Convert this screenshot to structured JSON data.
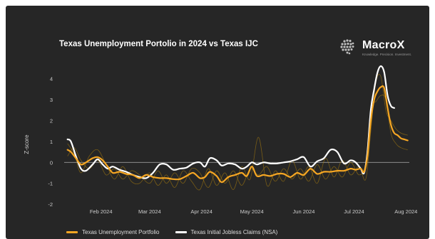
{
  "chart_data": {
    "type": "line",
    "title": "Texas Unemployment Portolio in 2024 vs Texas IJC",
    "ylabel": "Z-score",
    "xlabel": "",
    "ylim": [
      -2.2,
      4.6
    ],
    "yticks": [
      -2,
      -1,
      0,
      1,
      2,
      3,
      4
    ],
    "x_tick_labels": [
      "Feb 2024",
      "Mar 2024",
      "Apr 2024",
      "May 2024",
      "Jun 2024",
      "Jul 2024",
      "Aug 2024"
    ],
    "x_tick_dates": [
      "2024-02-01",
      "2024-03-01",
      "2024-04-01",
      "2024-05-01",
      "2024-06-01",
      "2024-07-01",
      "2024-08-01"
    ],
    "xlim": [
      "2024-01-10",
      "2024-08-03"
    ],
    "grid": false,
    "legend_position": "bottom",
    "zero_line": true,
    "series": [
      {
        "name": "Texas Unemployment Portfolio",
        "color": "#f5a623",
        "x": [
          "2024-01-12",
          "2024-01-14",
          "2024-01-17",
          "2024-01-20",
          "2024-01-23",
          "2024-01-27",
          "2024-01-30",
          "2024-02-02",
          "2024-02-05",
          "2024-02-08",
          "2024-02-12",
          "2024-02-16",
          "2024-02-20",
          "2024-02-24",
          "2024-02-28",
          "2024-03-03",
          "2024-03-07",
          "2024-03-11",
          "2024-03-15",
          "2024-03-19",
          "2024-03-23",
          "2024-03-27",
          "2024-03-31",
          "2024-04-03",
          "2024-04-06",
          "2024-04-10",
          "2024-04-13",
          "2024-04-17",
          "2024-04-21",
          "2024-04-25",
          "2024-04-28",
          "2024-05-01",
          "2024-05-04",
          "2024-05-08",
          "2024-05-12",
          "2024-05-16",
          "2024-05-20",
          "2024-05-24",
          "2024-05-28",
          "2024-06-01",
          "2024-06-05",
          "2024-06-09",
          "2024-06-13",
          "2024-06-17",
          "2024-06-21",
          "2024-06-25",
          "2024-06-29",
          "2024-07-02",
          "2024-07-05",
          "2024-07-07",
          "2024-07-09",
          "2024-07-11",
          "2024-07-13",
          "2024-07-15",
          "2024-07-17",
          "2024-07-19",
          "2024-07-21",
          "2024-07-23",
          "2024-07-25",
          "2024-07-27",
          "2024-07-29",
          "2024-07-31",
          "2024-08-02"
        ],
        "values": [
          0.6,
          0.5,
          0.2,
          -0.1,
          0.0,
          0.2,
          0.25,
          0.1,
          -0.2,
          -0.5,
          -0.45,
          -0.55,
          -0.6,
          -0.75,
          -0.6,
          -0.7,
          -0.75,
          -0.75,
          -0.8,
          -0.8,
          -0.65,
          -0.5,
          -0.75,
          -0.7,
          -0.45,
          -0.65,
          -0.95,
          -0.7,
          -0.6,
          -0.5,
          -0.65,
          -0.2,
          -0.65,
          -0.6,
          -0.65,
          -0.55,
          -0.55,
          -0.7,
          -0.5,
          -0.6,
          -0.3,
          -0.55,
          -0.45,
          -0.45,
          -0.4,
          -0.4,
          -0.3,
          -0.35,
          -0.3,
          -0.45,
          0.3,
          2.0,
          3.0,
          3.4,
          3.6,
          3.55,
          2.6,
          1.8,
          1.4,
          1.3,
          1.15,
          1.1,
          1.05
        ]
      },
      {
        "name": "Texas Initial Jobless Claims (NSA)",
        "color": "#ffffff",
        "x": [
          "2024-01-12",
          "2024-01-14",
          "2024-01-17",
          "2024-01-20",
          "2024-01-23",
          "2024-01-27",
          "2024-01-30",
          "2024-02-02",
          "2024-02-05",
          "2024-02-08",
          "2024-02-12",
          "2024-02-16",
          "2024-02-20",
          "2024-02-24",
          "2024-02-28",
          "2024-03-03",
          "2024-03-07",
          "2024-03-11",
          "2024-03-15",
          "2024-03-19",
          "2024-03-23",
          "2024-03-27",
          "2024-03-31",
          "2024-04-03",
          "2024-04-06",
          "2024-04-10",
          "2024-04-13",
          "2024-04-17",
          "2024-04-21",
          "2024-04-25",
          "2024-04-28",
          "2024-05-01",
          "2024-05-04",
          "2024-05-08",
          "2024-05-12",
          "2024-05-16",
          "2024-05-20",
          "2024-05-24",
          "2024-05-28",
          "2024-06-01",
          "2024-06-05",
          "2024-06-09",
          "2024-06-13",
          "2024-06-17",
          "2024-06-21",
          "2024-06-25",
          "2024-06-29",
          "2024-07-02",
          "2024-07-05",
          "2024-07-07",
          "2024-07-09",
          "2024-07-11",
          "2024-07-13",
          "2024-07-15",
          "2024-07-17",
          "2024-07-19",
          "2024-07-21",
          "2024-07-23",
          "2024-07-25"
        ],
        "values": [
          1.1,
          1.0,
          0.3,
          -0.3,
          -0.4,
          -0.1,
          0.15,
          -0.1,
          -0.3,
          -0.2,
          -0.35,
          -0.45,
          -0.6,
          -0.7,
          -0.75,
          -0.5,
          -0.1,
          -0.1,
          -0.35,
          -0.3,
          -0.25,
          -0.05,
          0.0,
          -0.2,
          0.2,
          0.1,
          -0.15,
          -0.05,
          -0.1,
          -0.3,
          -0.2,
          0.0,
          -0.1,
          0.0,
          -0.05,
          -0.05,
          0.0,
          0.05,
          0.15,
          0.25,
          -0.2,
          0.05,
          0.2,
          0.6,
          0.5,
          -0.05,
          0.1,
          0.0,
          -0.3,
          -0.5,
          0.5,
          2.5,
          3.5,
          4.3,
          4.6,
          4.3,
          3.2,
          2.7,
          2.6
        ]
      }
    ],
    "faint_bands": [
      {
        "color": "#b8860b",
        "x": [
          "2024-01-12",
          "2024-01-16",
          "2024-01-20",
          "2024-01-25",
          "2024-01-30",
          "2024-02-04",
          "2024-02-09",
          "2024-02-14",
          "2024-02-19",
          "2024-02-24",
          "2024-03-01",
          "2024-03-06",
          "2024-03-11",
          "2024-03-16",
          "2024-03-21",
          "2024-03-26",
          "2024-03-31",
          "2024-04-05",
          "2024-04-10",
          "2024-04-15",
          "2024-04-20",
          "2024-04-25",
          "2024-04-30",
          "2024-05-05",
          "2024-05-10",
          "2024-05-15",
          "2024-05-20",
          "2024-05-25",
          "2024-05-30",
          "2024-06-04",
          "2024-06-09",
          "2024-06-14",
          "2024-06-19",
          "2024-06-24",
          "2024-06-29",
          "2024-07-04",
          "2024-07-08",
          "2024-07-11",
          "2024-07-14",
          "2024-07-17",
          "2024-07-20",
          "2024-07-23",
          "2024-07-26",
          "2024-07-29",
          "2024-08-02"
        ],
        "values": [
          0.9,
          0.4,
          -0.5,
          0.3,
          0.6,
          -0.1,
          -0.8,
          -0.2,
          -0.9,
          -1.0,
          -0.5,
          -1.1,
          -0.6,
          -1.2,
          -0.4,
          -0.9,
          -1.3,
          -0.3,
          -1.1,
          -0.5,
          -1.3,
          -0.2,
          -0.8,
          1.2,
          -1.1,
          -0.4,
          -0.9,
          0.1,
          -0.8,
          -0.2,
          -1.0,
          0.2,
          -0.7,
          0.1,
          -0.6,
          -0.2,
          -0.8,
          1.5,
          3.8,
          4.1,
          2.5,
          2.0,
          1.6,
          1.4,
          1.3
        ]
      },
      {
        "color": "#b8860b",
        "x": [
          "2024-01-12",
          "2024-01-16",
          "2024-01-20",
          "2024-01-25",
          "2024-01-30",
          "2024-02-04",
          "2024-02-09",
          "2024-02-14",
          "2024-02-19",
          "2024-02-24",
          "2024-03-01",
          "2024-03-06",
          "2024-03-11",
          "2024-03-16",
          "2024-03-21",
          "2024-03-26",
          "2024-03-31",
          "2024-04-05",
          "2024-04-10",
          "2024-04-15",
          "2024-04-20",
          "2024-04-25",
          "2024-04-30",
          "2024-05-05",
          "2024-05-10",
          "2024-05-15",
          "2024-05-20",
          "2024-05-25",
          "2024-05-30",
          "2024-06-04",
          "2024-06-09",
          "2024-06-14",
          "2024-06-19",
          "2024-06-24",
          "2024-06-29",
          "2024-07-04",
          "2024-07-08",
          "2024-07-11",
          "2024-07-14",
          "2024-07-17",
          "2024-07-20",
          "2024-07-23",
          "2024-07-26",
          "2024-07-29",
          "2024-08-02"
        ],
        "values": [
          0.3,
          0.7,
          0.1,
          -0.3,
          0.1,
          -0.6,
          -0.3,
          -0.8,
          -0.4,
          -0.6,
          -1.0,
          -0.4,
          -1.0,
          -0.5,
          -1.0,
          -0.3,
          -0.5,
          -1.2,
          -0.4,
          -1.0,
          -0.4,
          -1.1,
          -0.3,
          -0.6,
          -0.2,
          -0.9,
          -0.3,
          -0.8,
          -0.3,
          -0.9,
          -0.1,
          -0.8,
          -0.2,
          -0.7,
          0.0,
          -0.6,
          0.0,
          2.6,
          2.9,
          3.2,
          3.0,
          1.4,
          0.9,
          0.7,
          0.6
        ]
      }
    ]
  },
  "logo": {
    "name": "MacroX",
    "tagline": "Knowledge. Precision. Investment."
  }
}
